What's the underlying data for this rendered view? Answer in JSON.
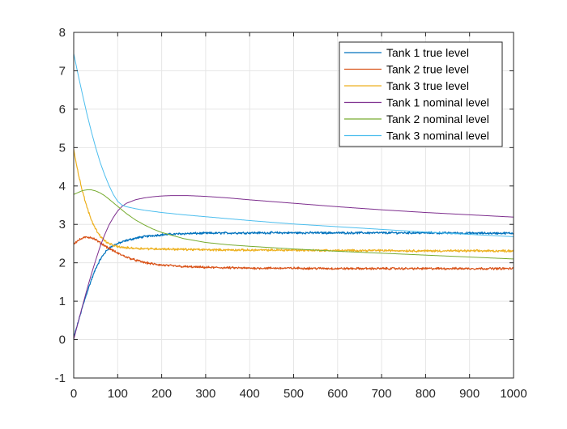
{
  "chart_data": {
    "type": "line",
    "title": "",
    "xlabel": "",
    "ylabel": "",
    "xlim": [
      0,
      1000
    ],
    "ylim": [
      -1,
      8
    ],
    "xticks": [
      "0",
      "100",
      "200",
      "300",
      "400",
      "500",
      "600",
      "700",
      "800",
      "900",
      "1000"
    ],
    "yticks": [
      "-1",
      "0",
      "1",
      "2",
      "3",
      "4",
      "5",
      "6",
      "7",
      "8"
    ],
    "grid": true,
    "legend_position": "top-right",
    "series": [
      {
        "name": "Tank 1 true level",
        "color": "#0072BD",
        "noisy": true,
        "x": [
          0,
          10,
          20,
          30,
          40,
          50,
          60,
          70,
          80,
          90,
          100,
          120,
          140,
          160,
          180,
          200,
          250,
          300,
          400,
          500,
          600,
          700,
          800,
          900,
          1000
        ],
        "y": [
          0.05,
          0.45,
          0.85,
          1.22,
          1.55,
          1.85,
          2.08,
          2.25,
          2.38,
          2.45,
          2.5,
          2.58,
          2.64,
          2.68,
          2.71,
          2.73,
          2.76,
          2.77,
          2.78,
          2.78,
          2.78,
          2.78,
          2.78,
          2.77,
          2.77
        ]
      },
      {
        "name": "Tank 2 true level",
        "color": "#D95319",
        "noisy": true,
        "x": [
          0,
          10,
          20,
          30,
          40,
          50,
          60,
          80,
          100,
          120,
          140,
          160,
          180,
          200,
          250,
          300,
          400,
          500,
          600,
          700,
          800,
          900,
          1000
        ],
        "y": [
          2.5,
          2.58,
          2.64,
          2.67,
          2.66,
          2.6,
          2.52,
          2.38,
          2.25,
          2.15,
          2.07,
          2.01,
          1.97,
          1.94,
          1.9,
          1.88,
          1.86,
          1.86,
          1.85,
          1.85,
          1.85,
          1.85,
          1.85
        ]
      },
      {
        "name": "Tank 3 true level",
        "color": "#EDB120",
        "noisy": true,
        "x": [
          0,
          10,
          20,
          30,
          40,
          50,
          60,
          70,
          80,
          90,
          100,
          120,
          140,
          160,
          200,
          300,
          400,
          500,
          600,
          700,
          800,
          900,
          1000
        ],
        "y": [
          4.95,
          4.35,
          3.85,
          3.45,
          3.12,
          2.88,
          2.7,
          2.58,
          2.5,
          2.45,
          2.42,
          2.39,
          2.38,
          2.37,
          2.36,
          2.34,
          2.33,
          2.33,
          2.32,
          2.32,
          2.31,
          2.31,
          2.31
        ]
      },
      {
        "name": "Tank 1 nominal level",
        "color": "#7E2F8E",
        "noisy": false,
        "x": [
          0,
          10,
          20,
          30,
          40,
          50,
          60,
          70,
          80,
          90,
          100,
          110,
          120,
          140,
          160,
          180,
          200,
          220,
          240,
          260,
          280,
          300,
          350,
          400,
          500,
          600,
          700,
          800,
          900,
          1000
        ],
        "y": [
          0.0,
          0.45,
          0.88,
          1.3,
          1.7,
          2.07,
          2.42,
          2.72,
          2.98,
          3.18,
          3.35,
          3.47,
          3.55,
          3.64,
          3.69,
          3.72,
          3.74,
          3.75,
          3.75,
          3.75,
          3.74,
          3.73,
          3.69,
          3.64,
          3.55,
          3.46,
          3.38,
          3.31,
          3.25,
          3.19
        ]
      },
      {
        "name": "Tank 2 nominal level",
        "color": "#77AC30",
        "noisy": false,
        "x": [
          0,
          10,
          20,
          30,
          40,
          50,
          60,
          70,
          80,
          100,
          120,
          140,
          160,
          180,
          200,
          250,
          300,
          350,
          400,
          500,
          600,
          700,
          800,
          900,
          1000
        ],
        "y": [
          3.78,
          3.83,
          3.88,
          3.9,
          3.9,
          3.87,
          3.82,
          3.75,
          3.66,
          3.47,
          3.28,
          3.12,
          2.99,
          2.88,
          2.79,
          2.63,
          2.53,
          2.47,
          2.43,
          2.36,
          2.3,
          2.25,
          2.2,
          2.15,
          2.1
        ]
      },
      {
        "name": "Tank 3 nominal level",
        "color": "#4DBEEE",
        "noisy": false,
        "x": [
          0,
          10,
          20,
          30,
          40,
          50,
          60,
          70,
          80,
          90,
          100,
          110,
          120,
          140,
          160,
          180,
          200,
          250,
          300,
          400,
          500,
          600,
          700,
          800,
          900,
          1000
        ],
        "y": [
          7.45,
          6.9,
          6.38,
          5.88,
          5.42,
          5.0,
          4.62,
          4.3,
          4.02,
          3.78,
          3.6,
          3.5,
          3.46,
          3.41,
          3.37,
          3.34,
          3.31,
          3.25,
          3.2,
          3.1,
          3.01,
          2.94,
          2.87,
          2.8,
          2.74,
          2.68
        ]
      }
    ]
  }
}
